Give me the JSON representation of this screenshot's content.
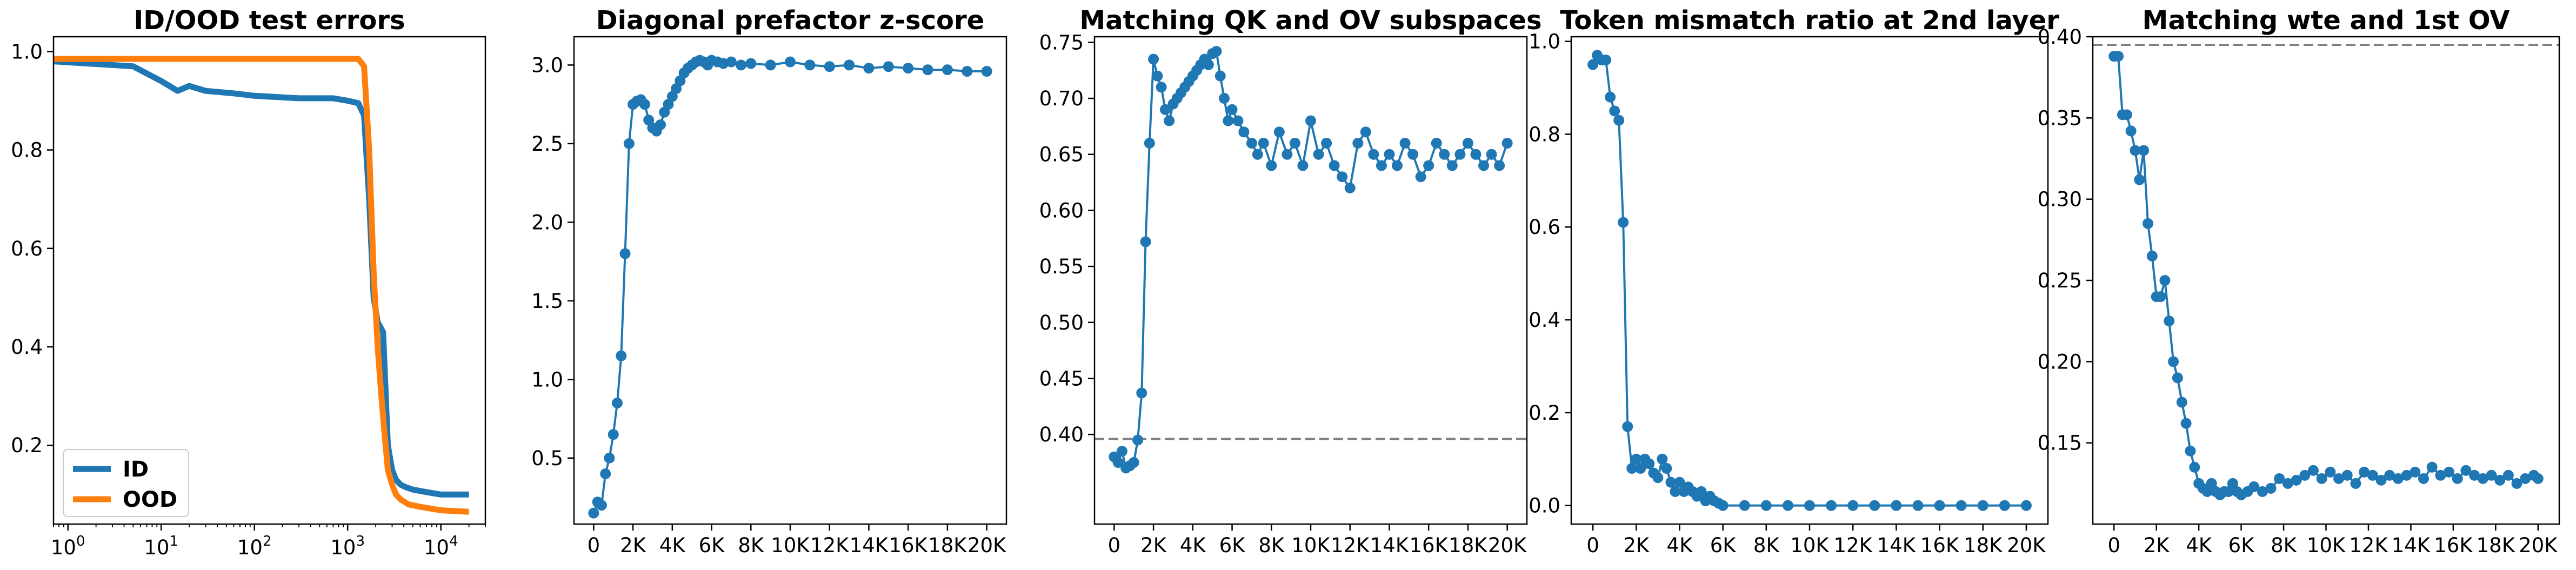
{
  "chart_data": [
    {
      "type": "line",
      "title": "ID/OOD test errors",
      "xscale": "log",
      "xlim": [
        0.7,
        30000
      ],
      "ylim": [
        0.04,
        1.03
      ],
      "xticks": [
        {
          "v": 1,
          "b": "10",
          "e": "0"
        },
        {
          "v": 10,
          "b": "10",
          "e": "1"
        },
        {
          "v": 100,
          "b": "10",
          "e": "2"
        },
        {
          "v": 1000,
          "b": "10",
          "e": "3"
        },
        {
          "v": 10000,
          "b": "10",
          "e": "4"
        }
      ],
      "yticks": [
        0.2,
        0.4,
        0.6,
        0.8,
        1.0
      ],
      "legend": "lower-left",
      "series": [
        {
          "name": "ID",
          "color": "#1f77b4",
          "x": [
            0.7,
            5,
            10,
            15,
            20,
            30,
            60,
            100,
            300,
            700,
            1000,
            1300,
            1500,
            1700,
            1900,
            2100,
            2400,
            2700,
            3000,
            3300,
            3700,
            4200,
            5000,
            7000,
            10000,
            20000
          ],
          "y": [
            0.98,
            0.97,
            0.94,
            0.92,
            0.93,
            0.92,
            0.915,
            0.91,
            0.905,
            0.905,
            0.9,
            0.895,
            0.87,
            0.7,
            0.5,
            0.45,
            0.43,
            0.2,
            0.15,
            0.13,
            0.12,
            0.115,
            0.11,
            0.105,
            0.1,
            0.1
          ]
        },
        {
          "name": "OOD",
          "color": "#ff7f0e",
          "x": [
            0.7,
            10,
            100,
            1000,
            1300,
            1500,
            1700,
            1900,
            2100,
            2300,
            2500,
            2700,
            3000,
            3300,
            3700,
            4500,
            6000,
            10000,
            20000
          ],
          "y": [
            0.985,
            0.985,
            0.985,
            0.985,
            0.985,
            0.97,
            0.8,
            0.55,
            0.4,
            0.3,
            0.22,
            0.15,
            0.12,
            0.1,
            0.09,
            0.08,
            0.075,
            0.068,
            0.065
          ]
        }
      ]
    },
    {
      "type": "line",
      "title": "Diagonal prefactor z-score",
      "xlim": [
        -1000,
        21000
      ],
      "ylim": [
        0.08,
        3.18
      ],
      "xticks": [
        0,
        2000,
        4000,
        6000,
        8000,
        10000,
        12000,
        14000,
        16000,
        18000,
        20000
      ],
      "xticklabels": [
        "0",
        "2K",
        "4K",
        "6K",
        "8K",
        "10K",
        "12K",
        "14K",
        "16K",
        "18K",
        "20K"
      ],
      "yticks": [
        0.5,
        1.0,
        1.5,
        2.0,
        2.5,
        3.0
      ],
      "markers": true,
      "series": [
        {
          "color": "#1f77b4",
          "x": [
            0,
            200,
            400,
            600,
            800,
            1000,
            1200,
            1400,
            1600,
            1800,
            2000,
            2200,
            2400,
            2600,
            2800,
            3000,
            3200,
            3400,
            3600,
            3800,
            4000,
            4200,
            4400,
            4600,
            4800,
            5000,
            5200,
            5400,
            5600,
            5800,
            6000,
            6300,
            6600,
            7000,
            7500,
            8000,
            9000,
            10000,
            11000,
            12000,
            13000,
            14000,
            15000,
            16000,
            17000,
            18000,
            19000,
            20000
          ],
          "y": [
            0.15,
            0.22,
            0.2,
            0.4,
            0.5,
            0.65,
            0.85,
            1.15,
            1.8,
            2.5,
            2.75,
            2.77,
            2.78,
            2.75,
            2.65,
            2.6,
            2.58,
            2.62,
            2.7,
            2.75,
            2.8,
            2.85,
            2.9,
            2.95,
            2.98,
            3.0,
            3.02,
            3.03,
            3.02,
            3.0,
            3.03,
            3.02,
            3.01,
            3.02,
            3.0,
            3.01,
            3.0,
            3.02,
            3.0,
            2.99,
            3.0,
            2.98,
            2.99,
            2.98,
            2.97,
            2.97,
            2.96,
            2.96
          ]
        }
      ]
    },
    {
      "type": "line",
      "title": "Matching QK and OV subspaces",
      "xlim": [
        -1000,
        21000
      ],
      "ylim": [
        0.32,
        0.755
      ],
      "xticks": [
        0,
        2000,
        4000,
        6000,
        8000,
        10000,
        12000,
        14000,
        16000,
        18000,
        20000
      ],
      "xticklabels": [
        "0",
        "2K",
        "4K",
        "6K",
        "8K",
        "10K",
        "12K",
        "14K",
        "16K",
        "18K",
        "20K"
      ],
      "yticks": [
        0.4,
        0.45,
        0.5,
        0.55,
        0.6,
        0.65,
        0.7,
        0.75
      ],
      "hline": 0.396,
      "markers": true,
      "series": [
        {
          "color": "#1f77b4",
          "x": [
            0,
            200,
            400,
            600,
            800,
            1000,
            1200,
            1400,
            1600,
            1800,
            2000,
            2200,
            2400,
            2600,
            2800,
            3000,
            3200,
            3400,
            3600,
            3800,
            4000,
            4200,
            4400,
            4600,
            4800,
            5000,
            5200,
            5400,
            5600,
            5800,
            6000,
            6300,
            6600,
            7000,
            7300,
            7600,
            8000,
            8400,
            8800,
            9200,
            9600,
            10000,
            10400,
            10800,
            11200,
            11600,
            12000,
            12400,
            12800,
            13200,
            13600,
            14000,
            14400,
            14800,
            15200,
            15600,
            16000,
            16400,
            16800,
            17200,
            17600,
            18000,
            18400,
            18800,
            19200,
            19600,
            20000
          ],
          "y": [
            0.38,
            0.375,
            0.385,
            0.37,
            0.372,
            0.375,
            0.395,
            0.437,
            0.572,
            0.66,
            0.735,
            0.72,
            0.71,
            0.69,
            0.68,
            0.695,
            0.7,
            0.705,
            0.71,
            0.715,
            0.72,
            0.725,
            0.73,
            0.735,
            0.73,
            0.74,
            0.742,
            0.72,
            0.7,
            0.68,
            0.69,
            0.68,
            0.67,
            0.66,
            0.65,
            0.66,
            0.64,
            0.67,
            0.65,
            0.66,
            0.64,
            0.68,
            0.65,
            0.66,
            0.64,
            0.63,
            0.62,
            0.66,
            0.67,
            0.65,
            0.64,
            0.65,
            0.64,
            0.66,
            0.65,
            0.63,
            0.64,
            0.66,
            0.65,
            0.64,
            0.65,
            0.66,
            0.65,
            0.64,
            0.65,
            0.64,
            0.66
          ]
        }
      ]
    },
    {
      "type": "line",
      "title": "Token mismatch ratio at 2nd layer",
      "xlim": [
        -1000,
        21000
      ],
      "ylim": [
        -0.04,
        1.01
      ],
      "xticks": [
        0,
        2000,
        4000,
        6000,
        8000,
        10000,
        12000,
        14000,
        16000,
        18000,
        20000
      ],
      "xticklabels": [
        "0",
        "2K",
        "4K",
        "6K",
        "8K",
        "10K",
        "12K",
        "14K",
        "16K",
        "18K",
        "20K"
      ],
      "yticks": [
        0.0,
        0.2,
        0.4,
        0.6,
        0.8,
        1.0
      ],
      "markers": true,
      "series": [
        {
          "color": "#1f77b4",
          "x": [
            0,
            200,
            400,
            600,
            800,
            1000,
            1200,
            1400,
            1600,
            1800,
            2000,
            2200,
            2400,
            2600,
            2800,
            3000,
            3200,
            3400,
            3600,
            3800,
            4000,
            4200,
            4400,
            4600,
            4800,
            5000,
            5200,
            5400,
            5600,
            5800,
            6000,
            7000,
            8000,
            9000,
            10000,
            11000,
            12000,
            13000,
            14000,
            15000,
            16000,
            17000,
            18000,
            19000,
            20000
          ],
          "y": [
            0.95,
            0.97,
            0.96,
            0.96,
            0.88,
            0.85,
            0.83,
            0.61,
            0.17,
            0.08,
            0.1,
            0.08,
            0.1,
            0.09,
            0.07,
            0.06,
            0.1,
            0.08,
            0.05,
            0.03,
            0.05,
            0.03,
            0.04,
            0.03,
            0.02,
            0.03,
            0.01,
            0.02,
            0.01,
            0.005,
            0.0,
            0.0,
            0.0,
            0.0,
            0.0,
            0.0,
            0.0,
            0.0,
            0.0,
            0.0,
            0.0,
            0.0,
            0.0,
            0.0,
            0.0
          ]
        }
      ]
    },
    {
      "type": "line",
      "title": "Matching wte and 1st OV",
      "xlim": [
        -1000,
        21000
      ],
      "ylim": [
        0.1,
        0.4
      ],
      "xticks": [
        0,
        2000,
        4000,
        6000,
        8000,
        10000,
        12000,
        14000,
        16000,
        18000,
        20000
      ],
      "xticklabels": [
        "0",
        "2K",
        "4K",
        "6K",
        "8K",
        "10K",
        "12K",
        "14K",
        "16K",
        "18K",
        "20K"
      ],
      "yticks": [
        0.15,
        0.2,
        0.25,
        0.3,
        0.35,
        0.4
      ],
      "hline": 0.395,
      "markers": true,
      "series": [
        {
          "color": "#1f77b4",
          "x": [
            0,
            200,
            400,
            600,
            800,
            1000,
            1200,
            1400,
            1600,
            1800,
            2000,
            2200,
            2400,
            2600,
            2800,
            3000,
            3200,
            3400,
            3600,
            3800,
            4000,
            4200,
            4400,
            4600,
            4800,
            5000,
            5200,
            5400,
            5600,
            5800,
            6000,
            6300,
            6600,
            7000,
            7400,
            7800,
            8200,
            8600,
            9000,
            9400,
            9800,
            10200,
            10600,
            11000,
            11400,
            11800,
            12200,
            12600,
            13000,
            13400,
            13800,
            14200,
            14600,
            15000,
            15400,
            15800,
            16200,
            16600,
            17000,
            17400,
            17800,
            18200,
            18600,
            19000,
            19400,
            19800,
            20000
          ],
          "y": [
            0.388,
            0.388,
            0.352,
            0.352,
            0.342,
            0.33,
            0.312,
            0.33,
            0.285,
            0.265,
            0.24,
            0.24,
            0.25,
            0.225,
            0.2,
            0.19,
            0.175,
            0.162,
            0.145,
            0.135,
            0.125,
            0.122,
            0.12,
            0.125,
            0.12,
            0.118,
            0.12,
            0.12,
            0.125,
            0.12,
            0.118,
            0.12,
            0.123,
            0.12,
            0.122,
            0.128,
            0.125,
            0.127,
            0.13,
            0.133,
            0.128,
            0.132,
            0.128,
            0.13,
            0.125,
            0.132,
            0.13,
            0.127,
            0.13,
            0.128,
            0.13,
            0.132,
            0.128,
            0.135,
            0.13,
            0.132,
            0.128,
            0.133,
            0.13,
            0.128,
            0.13,
            0.127,
            0.13,
            0.125,
            0.128,
            0.13,
            0.128
          ]
        }
      ]
    }
  ]
}
